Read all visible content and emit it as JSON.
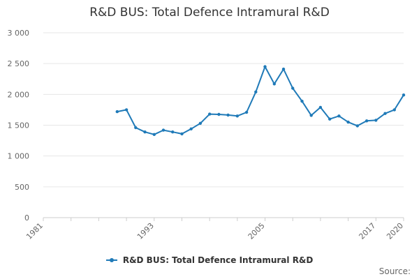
{
  "chart_data": {
    "type": "line",
    "title": "R&D BUS: Total Defence Intramural R&D",
    "source_label": "Source:",
    "xlim": [
      1981,
      2020
    ],
    "ylim": [
      0,
      3000
    ],
    "y_ticks": [
      0,
      500,
      1000,
      1500,
      2000,
      2500,
      3000
    ],
    "y_tick_labels": [
      "0",
      "500",
      "1 000",
      "1 500",
      "2 000",
      "2 500",
      "3 000"
    ],
    "x_ticks": [
      1981,
      1993,
      2005,
      2017,
      2020
    ],
    "x_tick_labels": [
      "1981",
      "1993",
      "2005",
      "2017",
      "2020"
    ],
    "grid": true,
    "legend_position": "bottom",
    "colors": {
      "series": "#1f7ab8",
      "grid": "#e6e6e6",
      "axis": "#cccccc"
    },
    "x": [
      1989,
      1990,
      1991,
      1992,
      1993,
      1994,
      1995,
      1996,
      1997,
      1998,
      1999,
      2000,
      2001,
      2002,
      2003,
      2004,
      2005,
      2006,
      2007,
      2008,
      2009,
      2010,
      2011,
      2012,
      2013,
      2014,
      2015,
      2016,
      2017,
      2018,
      2019,
      2020
    ],
    "series": [
      {
        "name": "R&D BUS: Total Defence Intramural R&D",
        "values": [
          1720,
          1750,
          1460,
          1390,
          1350,
          1420,
          1390,
          1360,
          1440,
          1530,
          1680,
          1675,
          1665,
          1650,
          1710,
          2040,
          2450,
          2170,
          2410,
          2100,
          1890,
          1660,
          1790,
          1600,
          1650,
          1550,
          1490,
          1570,
          1580,
          1690,
          1750,
          1990
        ]
      }
    ]
  }
}
